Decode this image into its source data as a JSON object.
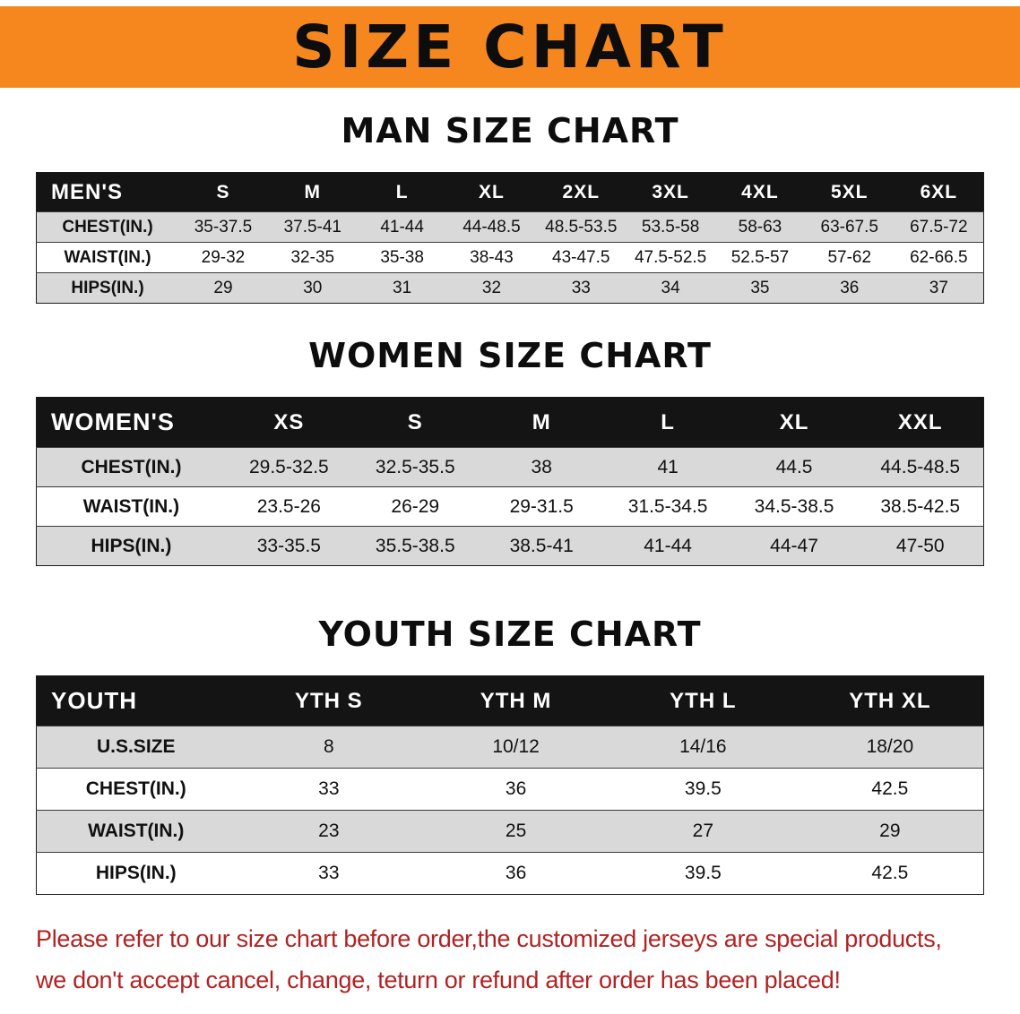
{
  "banner": {
    "title": "SIZE CHART"
  },
  "colors": {
    "banner-bg": "#F6871F",
    "header-bg": "#141414",
    "row-alt": "#D9D9D9",
    "footer-text": "#B22222"
  },
  "sections": [
    {
      "heading": "MAN SIZE CHART",
      "table": {
        "header": [
          "MEN'S",
          "S",
          "M",
          "L",
          "XL",
          "2XL",
          "3XL",
          "4XL",
          "5XL",
          "6XL"
        ],
        "rows": [
          {
            "label": "CHEST(IN.)",
            "values": [
              "35-37.5",
              "37.5-41",
              "41-44",
              "44-48.5",
              "48.5-53.5",
              "53.5-58",
              "58-63",
              "63-67.5",
              "67.5-72"
            ]
          },
          {
            "label": "WAIST(IN.)",
            "values": [
              "29-32",
              "32-35",
              "35-38",
              "38-43",
              "43-47.5",
              "47.5-52.5",
              "52.5-57",
              "57-62",
              "62-66.5"
            ]
          },
          {
            "label": "HIPS(IN.)",
            "values": [
              "29",
              "30",
              "31",
              "32",
              "33",
              "34",
              "35",
              "36",
              "37"
            ]
          }
        ]
      }
    },
    {
      "heading": "WOMEN SIZE CHART",
      "table": {
        "header": [
          "WOMEN'S",
          "XS",
          "S",
          "M",
          "L",
          "XL",
          "XXL"
        ],
        "rows": [
          {
            "label": "CHEST(IN.)",
            "values": [
              "29.5-32.5",
              "32.5-35.5",
              "38",
              "41",
              "44.5",
              "44.5-48.5"
            ]
          },
          {
            "label": "WAIST(IN.)",
            "values": [
              "23.5-26",
              "26-29",
              "29-31.5",
              "31.5-34.5",
              "34.5-38.5",
              "38.5-42.5"
            ]
          },
          {
            "label": "HIPS(IN.)",
            "values": [
              "33-35.5",
              "35.5-38.5",
              "38.5-41",
              "41-44",
              "44-47",
              "47-50"
            ]
          }
        ]
      }
    },
    {
      "heading": "YOUTH SIZE CHART",
      "table": {
        "header": [
          "YOUTH",
          "YTH S",
          "YTH M",
          "YTH L",
          "YTH XL"
        ],
        "rows": [
          {
            "label": "U.S.SIZE",
            "values": [
              "8",
              "10/12",
              "14/16",
              "18/20"
            ]
          },
          {
            "label": "CHEST(IN.)",
            "values": [
              "33",
              "36",
              "39.5",
              "42.5"
            ]
          },
          {
            "label": "WAIST(IN.)",
            "values": [
              "23",
              "25",
              "27",
              "29"
            ]
          },
          {
            "label": "HIPS(IN.)",
            "values": [
              "33",
              "36",
              "39.5",
              "42.5"
            ]
          }
        ]
      }
    }
  ],
  "footer": {
    "line1": "Please refer to our size chart before order,the customized jerseys are special products,",
    "line2": "we don't accept cancel, change, teturn or refund after order has been placed!"
  }
}
